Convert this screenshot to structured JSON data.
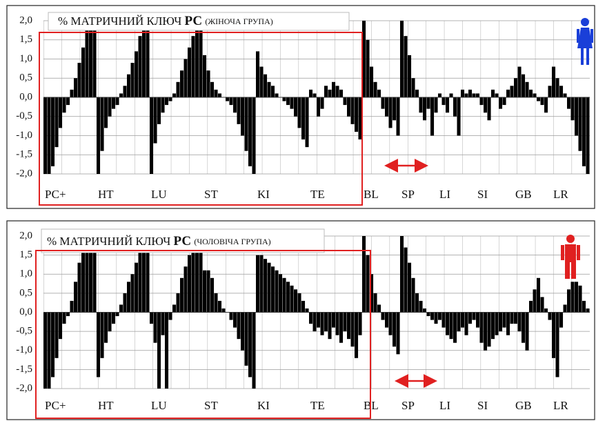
{
  "chart_data": [
    {
      "type": "bar",
      "title": "% МАТРИЧНИЙ КЛЮЧ",
      "title_bold": "РС",
      "subtitle": "(ЖІНОЧА ГРУПА)",
      "color": "#000000",
      "categories": [
        "РС+",
        "НТ",
        "LU",
        "ST",
        "KI",
        "TE",
        "BL",
        "SP",
        "LI",
        "SI",
        "GB",
        "LR"
      ],
      "values": [
        [
          -2,
          -2,
          -1.8,
          -1.3,
          -0.8,
          -0.4,
          -0.2,
          0.2,
          0.5,
          0.9,
          1.3,
          1.8,
          2,
          2
        ],
        [
          -2,
          -1.4,
          -0.8,
          -0.5,
          -0.3,
          -0.2,
          0.1,
          0.3,
          0.6,
          0.9,
          1.2,
          1.6,
          2,
          2
        ],
        [
          -2,
          -1.2,
          -0.7,
          -0.4,
          -0.2,
          -0.1,
          0.1,
          0.4,
          0.7,
          1.0,
          1.3,
          1.6,
          2,
          2
        ],
        [
          1.1,
          0.7,
          0.4,
          0.2,
          0.1,
          0,
          -0.1,
          -0.2,
          -0.4,
          -0.7,
          -1,
          -1.4,
          -1.8,
          -2
        ],
        [
          1.2,
          0.8,
          0.6,
          0.4,
          0.3,
          0.1,
          0,
          -0.1,
          -0.2,
          -0.3,
          -0.5,
          -0.8,
          -1.1,
          -1.3
        ],
        [
          0.2,
          0.1,
          -0.5,
          -0.3,
          0.3,
          0.2,
          0.4,
          0.3,
          0.2,
          -0.2,
          -0.5,
          -0.7,
          -0.9,
          -1.1
        ],
        [
          2,
          1.5,
          0.8,
          0.4,
          0.2,
          -0.3,
          -0.5,
          -0.8,
          -0.6,
          -1.0
        ],
        [
          2,
          1.6,
          1.1,
          0.5,
          0.2,
          -0.4,
          -0.6,
          -0.3,
          -1.0,
          -0.4
        ],
        [
          0.1,
          -0.2,
          -0.4,
          0.1,
          -0.5,
          -1.0,
          0.2,
          0.1,
          0.2,
          0.1
        ],
        [
          0.1,
          -0.2,
          -0.4,
          -0.6,
          0.2,
          0.1,
          -0.3,
          -0.2,
          0.2,
          0.3
        ],
        [
          0.5,
          0.8,
          0.6,
          0.4,
          0.2,
          0.1,
          -0.1,
          -0.2,
          -0.4,
          0.3
        ],
        [
          0.8,
          0.5,
          0.3,
          0.1,
          -0.3,
          -0.6,
          -1.0,
          -1.4,
          -1.8,
          -2
        ]
      ],
      "ylim": [
        -2,
        2
      ],
      "yticks": [
        {
          "value": 2,
          "label": "2,0"
        },
        {
          "value": 1.5,
          "label": "1,5"
        },
        {
          "value": 1,
          "label": "1,0"
        },
        {
          "value": 0.5,
          "label": "0,5"
        },
        {
          "value": 0,
          "label": "0,0"
        },
        {
          "value": -0.5,
          "label": "-0,5"
        },
        {
          "value": -1,
          "label": "-1,0"
        },
        {
          "value": -1.5,
          "label": "-1,5"
        },
        {
          "value": -2,
          "label": "-2,0"
        }
      ],
      "grid": true
    },
    {
      "type": "bar",
      "title": "% МАТРИЧНИЙ КЛЮЧ",
      "title_bold": "РС",
      "subtitle": "(ЧОЛОВІЧА ГРУПА)",
      "color": "#000000",
      "categories": [
        "РС+",
        "НТ",
        "LU",
        "ST",
        "KI",
        "TE",
        "BL",
        "SP",
        "LI",
        "SI",
        "GB",
        "LR"
      ],
      "values": [
        [
          -2,
          -2,
          -1.7,
          -1.2,
          -0.7,
          -0.3,
          -0.1,
          0.3,
          0.8,
          1.3,
          1.6,
          2,
          2,
          2
        ],
        [
          -1.7,
          -1.2,
          -0.8,
          -0.5,
          -0.3,
          -0.1,
          0.2,
          0.5,
          0.8,
          1.0,
          1.3,
          1.6,
          1.9,
          2
        ],
        [
          -0.3,
          -0.8,
          -2,
          -0.6,
          -2,
          -0.2,
          0.2,
          0.5,
          0.9,
          1.2,
          1.5,
          1.8,
          2,
          2
        ],
        [
          1.1,
          1.1,
          0.9,
          0.5,
          0.3,
          0.1,
          0,
          -0.2,
          -0.4,
          -0.7,
          -1.0,
          -1.4,
          -1.7,
          -2
        ],
        [
          1.5,
          1.5,
          1.4,
          1.3,
          1.2,
          1.1,
          1.0,
          0.9,
          0.8,
          0.7,
          0.6,
          0.5,
          0.3,
          0.1
        ],
        [
          -0.3,
          -0.5,
          -0.4,
          -0.6,
          -0.5,
          -0.7,
          -0.4,
          -0.6,
          -0.8,
          -0.5,
          -0.7,
          -0.9,
          -1.2,
          -0.6
        ],
        [
          2,
          1.5,
          1.0,
          0.5,
          0.2,
          -0.2,
          -0.4,
          -0.6,
          -0.9,
          -1.1
        ],
        [
          2,
          1.7,
          1.3,
          0.9,
          0.5,
          0.3,
          0.1,
          -0.1,
          -0.2,
          -0.3
        ],
        [
          -0.2,
          -0.4,
          -0.6,
          -0.7,
          -0.8,
          -0.5,
          -0.4,
          -0.6,
          -0.3,
          -0.2
        ],
        [
          -0.4,
          -0.8,
          -1.0,
          -0.9,
          -0.7,
          -0.6,
          -0.5,
          -0.4,
          -0.6,
          -0.3
        ],
        [
          -0.3,
          -0.5,
          -0.8,
          -1.0,
          0.3,
          0.6,
          0.9,
          0.4,
          0.1,
          -0.2
        ],
        [
          -1.2,
          -1.7,
          -0.4,
          0.2,
          0.6,
          0.8,
          0.8,
          0.7,
          0.3,
          0.1
        ]
      ],
      "ylim": [
        -2,
        2
      ],
      "yticks": [
        {
          "value": 2,
          "label": "2,0"
        },
        {
          "value": 1.5,
          "label": "1,5"
        },
        {
          "value": 1,
          "label": "1,0"
        },
        {
          "value": 0.5,
          "label": "0,5"
        },
        {
          "value": 0,
          "label": "0,0"
        },
        {
          "value": -0.5,
          "label": "-0,5"
        },
        {
          "value": -1,
          "label": "-1,0"
        },
        {
          "value": -1.5,
          "label": "-1,5"
        },
        {
          "value": -2,
          "label": "-2,0"
        }
      ],
      "grid": true
    }
  ]
}
